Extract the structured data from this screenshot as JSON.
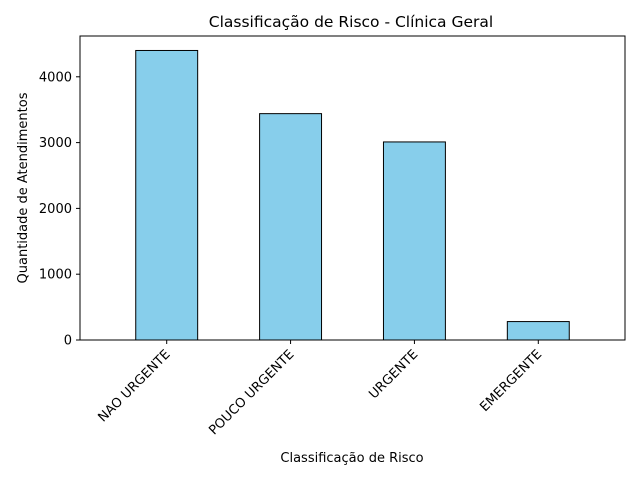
{
  "chart_data": {
    "type": "bar",
    "title": "Classificação de Risco - Clínica Geral",
    "xlabel": "Classificação de Risco",
    "ylabel": "Quantidade de Atendimentos",
    "categories": [
      "NAO URGENTE",
      "POUCO URGENTE",
      "URGENTE",
      "EMERGENTE"
    ],
    "values": [
      4400,
      3440,
      3010,
      280
    ],
    "ylim": [
      0,
      4620
    ],
    "yticks": [
      0,
      1000,
      2000,
      3000,
      4000
    ],
    "grid": false,
    "bar_color": "#87ceeb",
    "edge_color": "#000000"
  }
}
